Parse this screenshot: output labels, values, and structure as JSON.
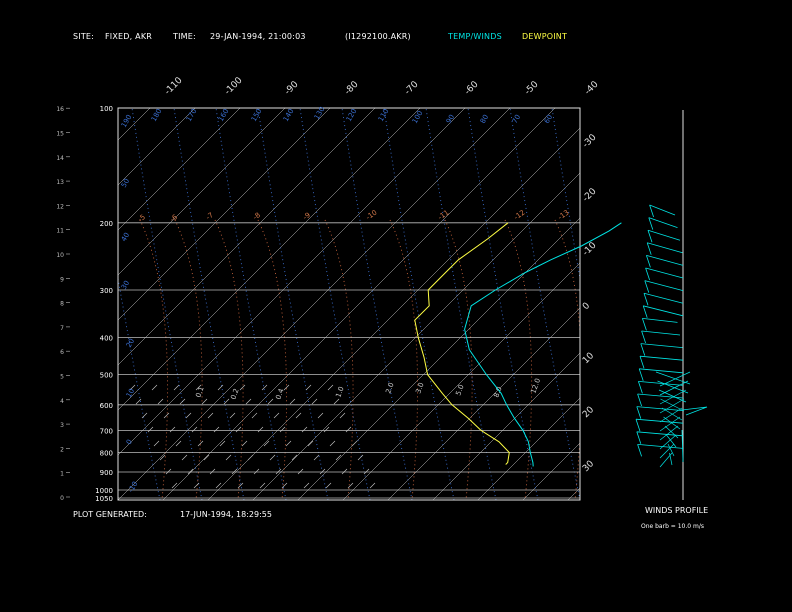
{
  "header": {
    "site_label": "SITE:",
    "site_value": "FIXED, AKR",
    "time_label": "TIME:",
    "time_value": "29-JAN-1994, 21:00:03",
    "file_value": "(I1292100.AKR)",
    "legend_temp": "TEMP/WINDS",
    "legend_dew": "DEWPOINT"
  },
  "footer": {
    "generated_label": "PLOT GENERATED:",
    "generated_value": "17-JUN-1994, 18:29:55",
    "winds_title": "WINDS PROFILE",
    "barb_note": "One barb = 10.0 m/s"
  },
  "colors": {
    "background": "#000000",
    "temp": "#00e5e5",
    "dewpoint": "#ffff44",
    "isobar": "#bdbdbd",
    "isotherm": "#c8c8c8",
    "dry_adiabat": "#3a6ecf",
    "moist_adiabat": "#c8c8c8",
    "mixing_ratio": "#c8643c",
    "header_cyan": "#00e5e5",
    "header_yellow": "#ffff44"
  },
  "chart_data": {
    "type": "line",
    "pressure_levels": [
      100,
      200,
      300,
      400,
      500,
      600,
      700,
      800,
      900,
      1000,
      1050
    ],
    "pressure_labels": [
      "100",
      "200",
      "300",
      "400",
      "500",
      "600",
      "700",
      "800",
      "900",
      "1000",
      "1050"
    ],
    "height_labels": [
      "0",
      "1",
      "2",
      "3",
      "4",
      "5",
      "6",
      "7",
      "8",
      "9",
      "10",
      "11",
      "12",
      "13",
      "14",
      "15",
      "16"
    ],
    "top_temp_labels": [
      "-110",
      "-100",
      "-90",
      "-80",
      "-70",
      "-60",
      "-50",
      "-40"
    ],
    "right_temp_labels": [
      "-30",
      "-20",
      "-10",
      "0",
      "10",
      "20",
      "30"
    ],
    "dry_adiabat_labels": [
      "190",
      "180",
      "170",
      "160",
      "150",
      "140",
      "130",
      "120",
      "110",
      "100",
      "90",
      "80",
      "70",
      "60",
      "50",
      "40",
      "30",
      "20",
      "10",
      "0",
      "-10",
      "-20",
      "-30",
      "-40"
    ],
    "mixing_ratio_labels": [
      "0.1",
      "0.2",
      "0.4",
      "1.0",
      "2.0",
      "3.0",
      "5.0",
      "8.0",
      "12.0"
    ],
    "moist_labels": [
      "-5",
      "-6",
      "-7",
      "-8",
      "-9",
      "-10",
      "-11",
      "-12",
      "-13"
    ],
    "series": [
      {
        "name": "TEMP/WINDS",
        "points": [
          [
            200,
            -56
          ],
          [
            210,
            -57
          ],
          [
            230,
            -60
          ],
          [
            250,
            -64
          ],
          [
            270,
            -67
          ],
          [
            300,
            -70
          ],
          [
            330,
            -72
          ],
          [
            380,
            -68
          ],
          [
            430,
            -62
          ],
          [
            500,
            -52
          ],
          [
            560,
            -44
          ],
          [
            600,
            -40
          ],
          [
            650,
            -35
          ],
          [
            700,
            -30
          ],
          [
            750,
            -26
          ],
          [
            800,
            -23
          ],
          [
            850,
            -20
          ],
          [
            870,
            -19
          ]
        ]
      },
      {
        "name": "DEWPOINT",
        "points": [
          [
            200,
            -83
          ],
          [
            220,
            -84
          ],
          [
            250,
            -86
          ],
          [
            270,
            -86
          ],
          [
            300,
            -86
          ],
          [
            330,
            -82
          ],
          [
            360,
            -82
          ],
          [
            400,
            -77
          ],
          [
            450,
            -71
          ],
          [
            500,
            -66
          ],
          [
            560,
            -58
          ],
          [
            600,
            -53
          ],
          [
            650,
            -46
          ],
          [
            700,
            -40
          ],
          [
            750,
            -33
          ],
          [
            800,
            -28
          ],
          [
            850,
            -26
          ],
          [
            860,
            -26
          ]
        ]
      }
    ],
    "winds_profile_x": [
      2,
      3,
      4,
      5,
      6,
      7,
      8,
      9,
      10,
      11,
      12,
      13,
      14,
      15,
      16,
      17,
      18,
      19,
      20,
      21
    ],
    "winds_profile_y": [
      17,
      16,
      15,
      14,
      13,
      12,
      11,
      10,
      9,
      8,
      7,
      6,
      5,
      4,
      3,
      2,
      1,
      0,
      1,
      2
    ]
  }
}
